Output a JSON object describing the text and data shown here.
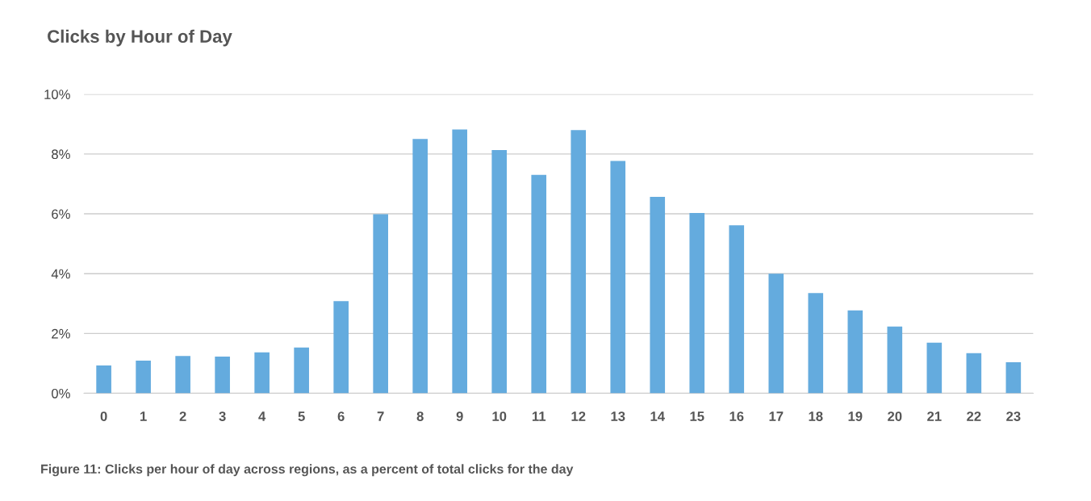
{
  "chart_data": {
    "type": "bar",
    "title": "Clicks by Hour of Day",
    "categories": [
      "0",
      "1",
      "2",
      "3",
      "4",
      "5",
      "6",
      "7",
      "8",
      "9",
      "10",
      "11",
      "12",
      "13",
      "14",
      "15",
      "16",
      "17",
      "18",
      "19",
      "20",
      "21",
      "22",
      "23"
    ],
    "values": [
      0.93,
      1.09,
      1.25,
      1.23,
      1.37,
      1.53,
      3.08,
      5.99,
      8.5,
      8.82,
      8.13,
      7.3,
      8.8,
      7.77,
      6.57,
      6.03,
      5.62,
      4.0,
      3.35,
      2.77,
      2.23,
      1.69,
      1.34,
      1.04
    ],
    "color": "#64abde",
    "ylim": [
      0,
      10
    ],
    "yticks": [
      {
        "value": 0,
        "label": "0%"
      },
      {
        "value": 2,
        "label": "2%"
      },
      {
        "value": 4,
        "label": "4%"
      },
      {
        "value": 6,
        "label": "6%"
      },
      {
        "value": 8,
        "label": "8%"
      },
      {
        "value": 10,
        "label": "10%"
      }
    ],
    "grid": "y",
    "legend": false,
    "annotations": [
      "Figure 11: Clicks per hour of day across regions, as a percent of total clicks for the day"
    ]
  }
}
